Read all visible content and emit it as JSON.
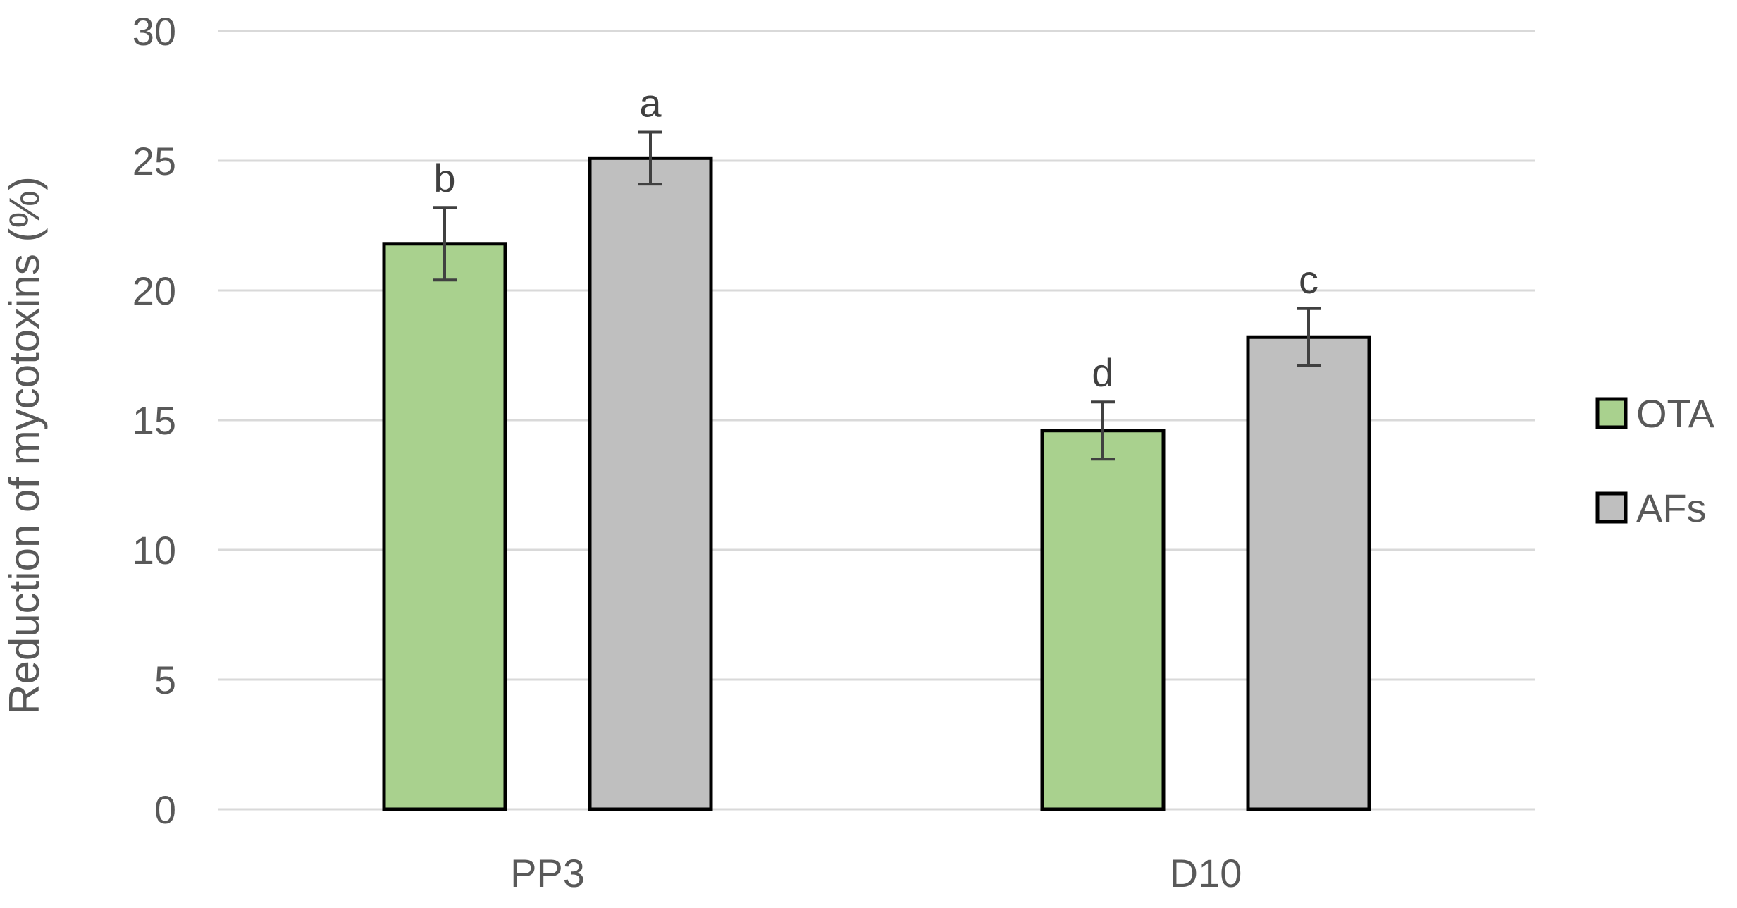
{
  "chart_data": {
    "type": "bar",
    "title": "",
    "xlabel": "",
    "ylabel": "Reduction of mycotoxins (%)",
    "ylim": [
      0,
      30
    ],
    "yticks": [
      0,
      5,
      10,
      15,
      20,
      25,
      30
    ],
    "grid": true,
    "legend_position": "right",
    "categories": [
      "PP3",
      "D10"
    ],
    "series": [
      {
        "name": "OTA",
        "color": "#a9d18e",
        "values": [
          21.8,
          14.6
        ],
        "errors": [
          1.4,
          1.1
        ],
        "labels": [
          "b",
          "d"
        ]
      },
      {
        "name": "AFs",
        "color": "#bfbfbf",
        "values": [
          25.1,
          18.2
        ],
        "errors": [
          1.0,
          1.1
        ],
        "labels": [
          "a",
          "c"
        ]
      }
    ]
  }
}
